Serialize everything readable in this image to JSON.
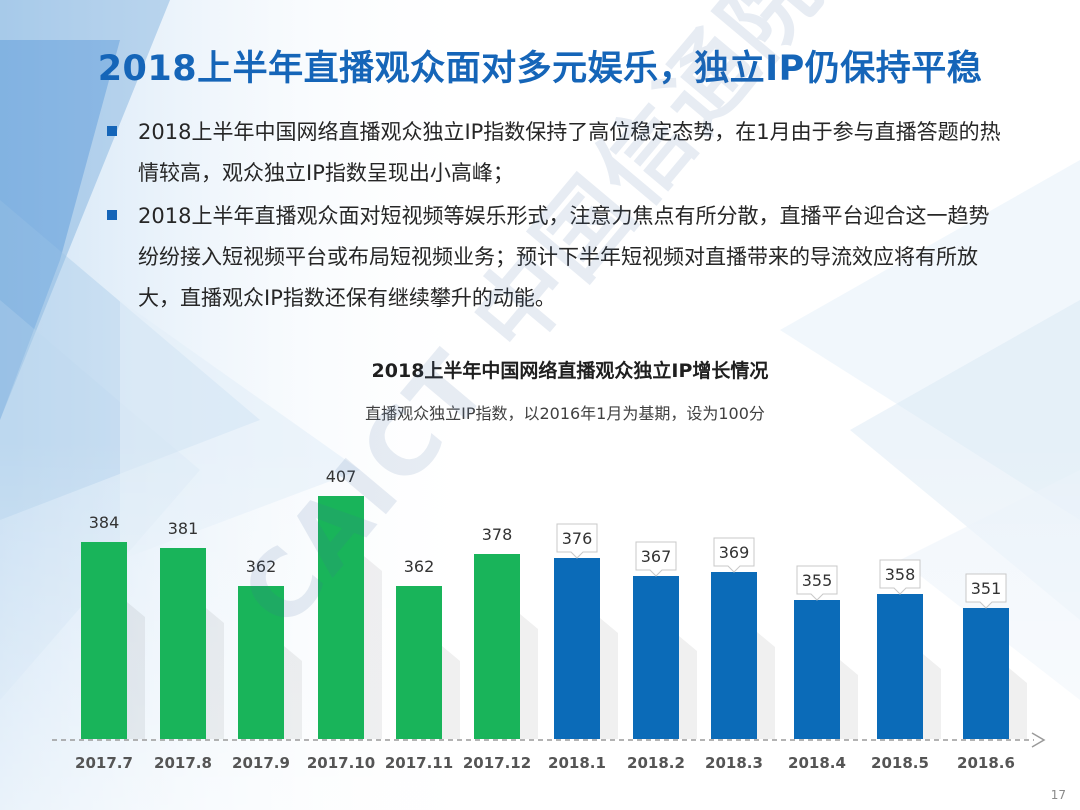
{
  "slide": {
    "title": "2018上半年直播观众面对多元娱乐，独立IP仍保持平稳",
    "bullets": [
      "2018上半年中国网络直播观众独立IP指数保持了高位稳定态势，在1月由于参与直播答题的热情较高，观众独立IP指数呈现出小高峰；",
      "2018上半年直播观众面对短视频等娱乐形式，注意力焦点有所分散，直播平台迎合这一趋势纷纷接入短视频平台或布局短视频业务；预计下半年短视频对直播带来的导流效应将有所放大，直播观众IP指数还保有继续攀升的动能。"
    ],
    "page_number": "17",
    "watermark": "CAICT 中国信通院"
  },
  "chart_data": {
    "type": "bar",
    "title": "2018上半年中国网络直播观众独立IP增长情况",
    "subtitle": "直播观众独立IP指数，以2016年1月为基期，设为100分",
    "categories": [
      "2017.7",
      "2017.8",
      "2017.9",
      "2017.10",
      "2017.11",
      "2017.12",
      "2018.1",
      "2018.2",
      "2018.3",
      "2018.4",
      "2018.5",
      "2018.6"
    ],
    "values": [
      384,
      381,
      362,
      407,
      362,
      378,
      376,
      367,
      369,
      355,
      358,
      351
    ],
    "bar_colors": [
      "#19b45a",
      "#19b45a",
      "#19b45a",
      "#19b45a",
      "#19b45a",
      "#19b45a",
      "#0b6bb8",
      "#0b6bb8",
      "#0b6bb8",
      "#0b6bb8",
      "#0b6bb8",
      "#0b6bb8"
    ],
    "callout_labels_from_index": 6,
    "xlabel": "",
    "ylabel": "",
    "grid": false,
    "legend": "none"
  },
  "colors": {
    "title": "#1565b8",
    "bullet_marker": "#1565b8",
    "green_bar": "#19b45a",
    "blue_bar": "#0b6bb8"
  }
}
